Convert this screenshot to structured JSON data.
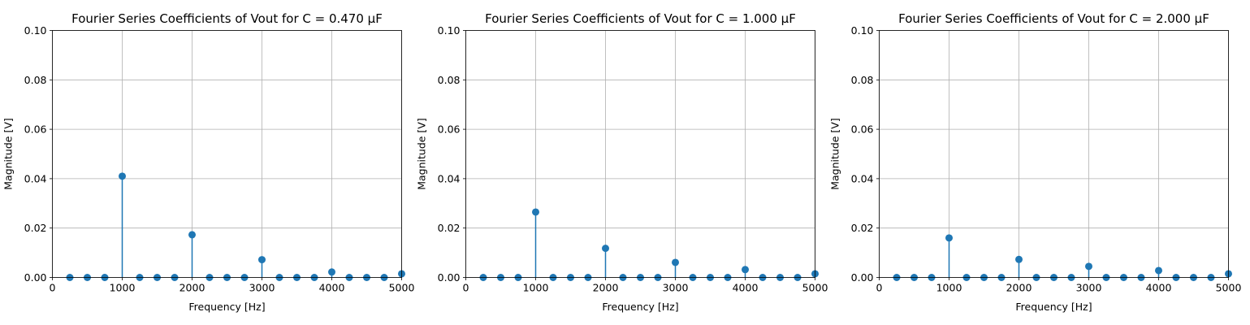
{
  "chart_data": [
    {
      "type": "stem",
      "title": "Fourier Series Coefficients of Vout for C = 0.470 μF",
      "xlabel": "Frequency [Hz]",
      "ylabel": "Magnitude [V]",
      "xlim": [
        0,
        5000
      ],
      "ylim": [
        0,
        0.1
      ],
      "xticks": [
        "0",
        "1000",
        "2000",
        "3000",
        "4000",
        "5000"
      ],
      "yticks": [
        "0.00",
        "0.02",
        "0.04",
        "0.06",
        "0.08",
        "0.10"
      ],
      "grid": true,
      "color": "#1f77b4",
      "x": [
        250,
        500,
        750,
        1000,
        1250,
        1500,
        1750,
        2000,
        2250,
        2500,
        2750,
        3000,
        3250,
        3500,
        3750,
        4000,
        4250,
        4500,
        4750,
        5000
      ],
      "y": [
        0,
        0,
        0,
        0.041,
        0,
        0,
        0,
        0.0173,
        0,
        0,
        0,
        0.0072,
        0,
        0,
        0,
        0.0022,
        0,
        0,
        0,
        0.0015
      ]
    },
    {
      "type": "stem",
      "title": "Fourier Series Coefficients of Vout for C = 1.000 μF",
      "xlabel": "Frequency [Hz]",
      "ylabel": "Magnitude [V]",
      "xlim": [
        0,
        5000
      ],
      "ylim": [
        0,
        0.1
      ],
      "xticks": [
        "0",
        "1000",
        "2000",
        "3000",
        "4000",
        "5000"
      ],
      "yticks": [
        "0.00",
        "0.02",
        "0.04",
        "0.06",
        "0.08",
        "0.10"
      ],
      "grid": true,
      "color": "#1f77b4",
      "x": [
        250,
        500,
        750,
        1000,
        1250,
        1500,
        1750,
        2000,
        2250,
        2500,
        2750,
        3000,
        3250,
        3500,
        3750,
        4000,
        4250,
        4500,
        4750,
        5000
      ],
      "y": [
        0,
        0,
        0,
        0.0265,
        0,
        0,
        0,
        0.0118,
        0,
        0,
        0,
        0.0061,
        0,
        0,
        0,
        0.0032,
        0,
        0,
        0,
        0.0015
      ]
    },
    {
      "type": "stem",
      "title": "Fourier Series Coefficients of Vout for C = 2.000 μF",
      "xlabel": "Frequency [Hz]",
      "ylabel": "Magnitude [V]",
      "xlim": [
        0,
        5000
      ],
      "ylim": [
        0,
        0.1
      ],
      "xticks": [
        "0",
        "1000",
        "2000",
        "3000",
        "4000",
        "5000"
      ],
      "yticks": [
        "0.00",
        "0.02",
        "0.04",
        "0.06",
        "0.08",
        "0.10"
      ],
      "grid": true,
      "color": "#1f77b4",
      "x": [
        250,
        500,
        750,
        1000,
        1250,
        1500,
        1750,
        2000,
        2250,
        2500,
        2750,
        3000,
        3250,
        3500,
        3750,
        4000,
        4250,
        4500,
        4750,
        5000
      ],
      "y": [
        0,
        0,
        0,
        0.016,
        0,
        0,
        0,
        0.0073,
        0,
        0,
        0,
        0.0045,
        0,
        0,
        0,
        0.0028,
        0,
        0,
        0,
        0.0015
      ]
    }
  ]
}
